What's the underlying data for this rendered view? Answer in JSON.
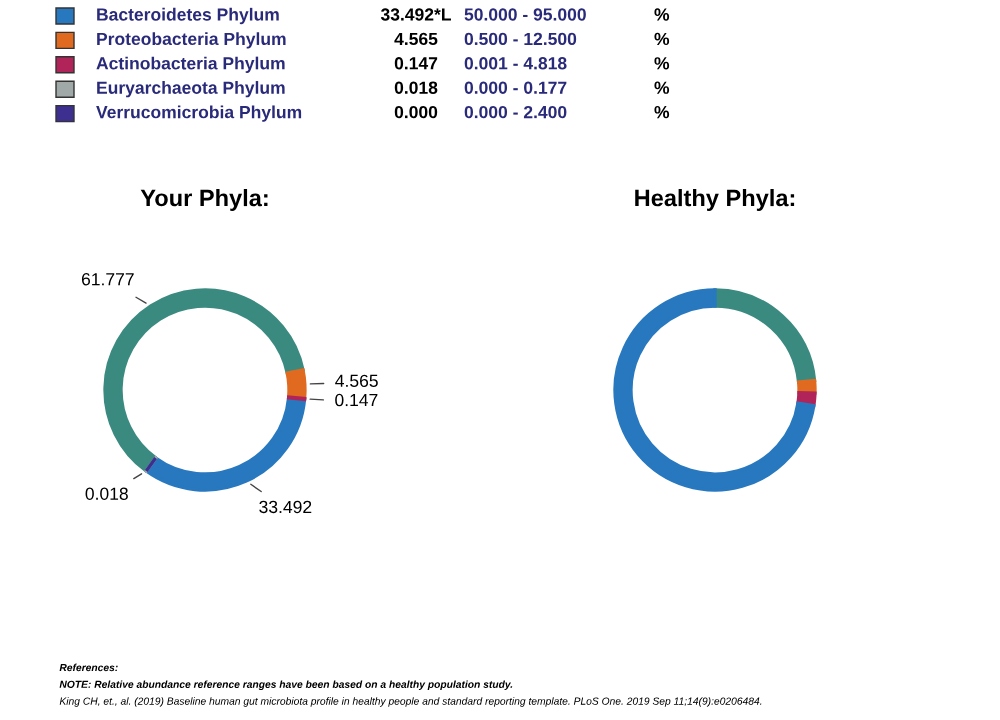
{
  "chart_data": [
    {
      "type": "other",
      "categories": [
        "Bacteroidetes Phylum",
        "Proteobacteria Phylum",
        "Actinobacteria Phylum",
        "Euryarchaeota Phylum",
        "Verrucomicrobia Phylum"
      ],
      "colors": [
        "#2878bf",
        "#e06a20",
        "#b0245a",
        "#a0a8a8",
        "#3c2f8f"
      ],
      "value_labels": [
        "33.492*L",
        "4.565",
        "0.147",
        "0.018",
        "0.000"
      ],
      "annotations": [
        "50.000 - 95.000",
        "%",
        "0.500 - 12.500",
        "%",
        "0.001 - 4.818",
        "%",
        "0.000 - 0.177",
        "%",
        "0.000 - 2.400",
        "%"
      ]
    },
    {
      "type": "donut",
      "title": "Your Phyla:",
      "categories": [
        null,
        null,
        null,
        null,
        null,
        null
      ],
      "values": [
        61.777,
        4.565,
        0.147,
        33.492,
        0.018,
        0.0
      ],
      "colors": [
        "#3a8a80",
        "#e06a20",
        "#b0245a",
        "#2878bf",
        "#a0a8a8",
        "#3c2f8f"
      ],
      "value_labels": [
        "61.777",
        "4.565",
        "0.147",
        "33.492",
        "0.018",
        null
      ]
    },
    {
      "type": "donut",
      "title": "Healthy Phyla:",
      "categories": [
        null,
        null,
        null,
        null
      ],
      "values": [
        23.5,
        2,
        2,
        72.5
      ],
      "colors": [
        "#3a8a80",
        "#e06a20",
        "#b0245a",
        "#2878bf"
      ]
    },
    {
      "type": "other",
      "annotations": [
        "References:",
        "NOTE: Relative abundance reference ranges have been based on a healthy population study.",
        "King CH, et., al. (2019) Baseline human gut microbiota profile in healthy people and standard reporting template. PLoS One. 2019 Sep 11;14(9):e0206484."
      ]
    }
  ]
}
